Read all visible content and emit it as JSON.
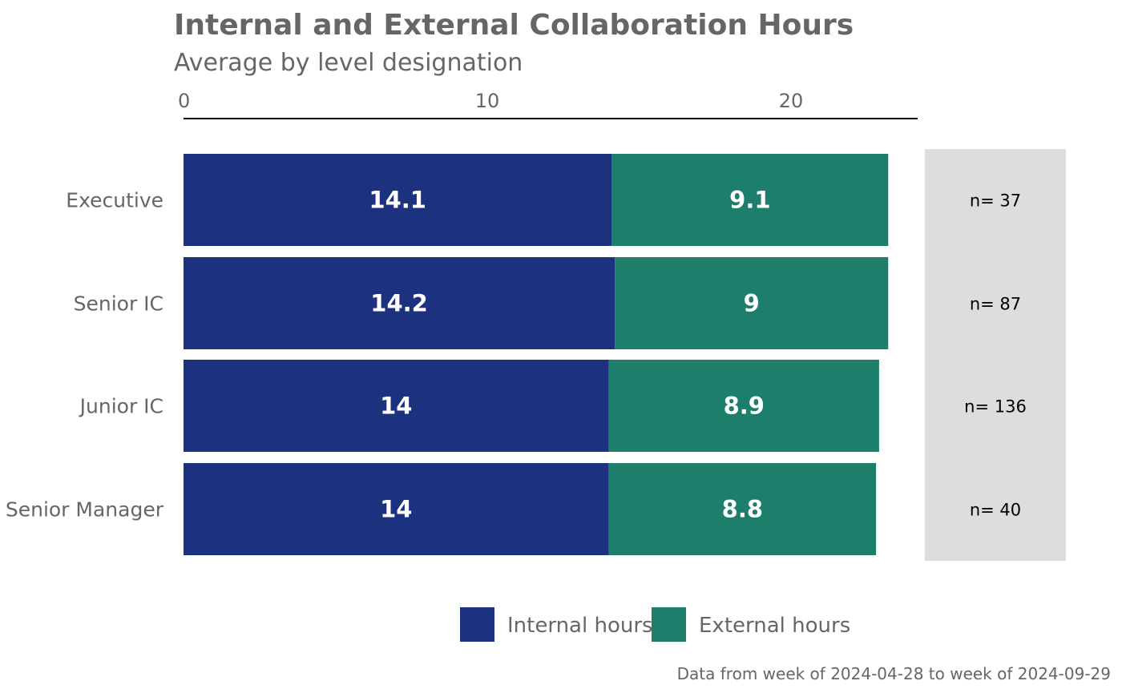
{
  "chart_data": {
    "type": "bar",
    "orientation": "horizontal",
    "stacked": true,
    "title": "Internal and External Collaboration Hours",
    "subtitle": "Average by level designation",
    "caption": "Data from week of 2024-04-28 to week of 2024-09-29",
    "categories": [
      "Executive",
      "Senior IC",
      "Junior IC",
      "Senior Manager"
    ],
    "series": [
      {
        "name": "Internal hours",
        "values": [
          14.1,
          14.2,
          14,
          14
        ],
        "labels": [
          "14.1",
          "14.2",
          "14",
          "14"
        ],
        "color": "#1D327E"
      },
      {
        "name": "External hours",
        "values": [
          9.1,
          9,
          8.9,
          8.8
        ],
        "labels": [
          "9.1",
          "9",
          "8.9",
          "8.8"
        ],
        "color": "#1D7F6B"
      }
    ],
    "counts": [
      "n= 37",
      "n= 87",
      "n= 136",
      "n= 40"
    ],
    "x_ticks": [
      "0",
      "10",
      "20"
    ],
    "xlim": [
      0,
      24.2
    ],
    "axis_position": "top",
    "legend_position": "bottom",
    "grid": false,
    "colors": {
      "title": "#666666",
      "tick_label": "#666666",
      "count_panel": "#DDDDDD",
      "bar_label": "#FFFFFF"
    }
  }
}
